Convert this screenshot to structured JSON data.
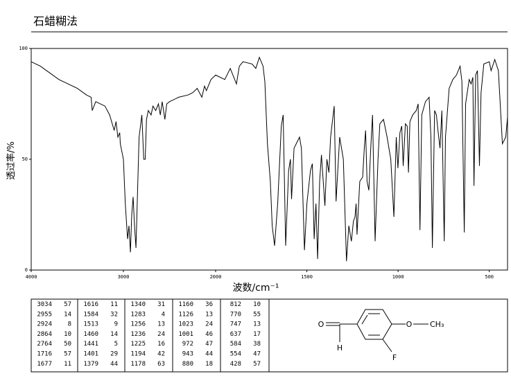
{
  "title": "石蜡糊法",
  "chart_data": {
    "type": "line",
    "xlabel": "波数/cm⁻¹",
    "ylabel": "透过率/%",
    "color": "#000000",
    "xlim": [
      4000,
      400
    ],
    "xbreak": 2000,
    "xticks": [
      4000,
      3000,
      2000,
      1500,
      1000,
      500
    ],
    "ylim": [
      0,
      100
    ],
    "yticks": [
      0,
      50,
      100
    ],
    "x": [
      4000,
      3900,
      3800,
      3700,
      3600,
      3500,
      3400,
      3350,
      3338,
      3300,
      3200,
      3150,
      3100,
      3080,
      3060,
      3040,
      3034,
      3000,
      2980,
      2955,
      2940,
      2924,
      2910,
      2895,
      2880,
      2864,
      2850,
      2830,
      2800,
      2780,
      2764,
      2750,
      2730,
      2700,
      2680,
      2650,
      2620,
      2600,
      2580,
      2550,
      2530,
      2500,
      2400,
      2300,
      2250,
      2200,
      2150,
      2120,
      2100,
      2050,
      2000,
      1950,
      1920,
      1886,
      1870,
      1850,
      1800,
      1780,
      1760,
      1740,
      1730,
      1716,
      1700,
      1690,
      1677,
      1660,
      1640,
      1630,
      1616,
      1600,
      1590,
      1584,
      1570,
      1540,
      1530,
      1513,
      1500,
      1480,
      1470,
      1460,
      1450,
      1441,
      1430,
      1420,
      1410,
      1401,
      1390,
      1379,
      1370,
      1350,
      1340,
      1320,
      1300,
      1283,
      1270,
      1256,
      1245,
      1236,
      1230,
      1225,
      1210,
      1194,
      1185,
      1178,
      1170,
      1160,
      1150,
      1140,
      1126,
      1110,
      1100,
      1080,
      1060,
      1040,
      1023,
      1010,
      1001,
      990,
      980,
      972,
      960,
      950,
      943,
      935,
      920,
      900,
      890,
      880,
      870,
      850,
      830,
      820,
      812,
      800,
      790,
      780,
      770,
      760,
      747,
      740,
      720,
      700,
      680,
      660,
      650,
      637,
      630,
      610,
      600,
      590,
      584,
      575,
      565,
      554,
      545,
      530,
      500,
      490,
      470,
      450,
      428,
      410,
      400
    ],
    "values": [
      94,
      92,
      89,
      86,
      84,
      82,
      79,
      78,
      72,
      76,
      74,
      70,
      63,
      67,
      60,
      62,
      57,
      50,
      30,
      14,
      20,
      8,
      25,
      33,
      20,
      10,
      30,
      60,
      70,
      50,
      50,
      68,
      72,
      70,
      74,
      72,
      75,
      70,
      76,
      68,
      75,
      76,
      78,
      79,
      80,
      82,
      78,
      83,
      81,
      86,
      88,
      86,
      91,
      84,
      92,
      94,
      93,
      91,
      96,
      92,
      85,
      57,
      40,
      20,
      11,
      30,
      65,
      70,
      11,
      45,
      50,
      32,
      55,
      60,
      55,
      9,
      30,
      45,
      48,
      14,
      30,
      5,
      40,
      52,
      40,
      29,
      50,
      44,
      60,
      74,
      31,
      60,
      50,
      4,
      20,
      13,
      22,
      24,
      30,
      16,
      40,
      42,
      55,
      63,
      40,
      36,
      55,
      70,
      13,
      50,
      66,
      68,
      60,
      50,
      24,
      60,
      46,
      62,
      65,
      47,
      66,
      65,
      44,
      67,
      70,
      72,
      75,
      18,
      70,
      76,
      78,
      60,
      10,
      72,
      70,
      62,
      55,
      72,
      13,
      60,
      82,
      86,
      88,
      92,
      85,
      17,
      75,
      86,
      84,
      87,
      38,
      88,
      90,
      47,
      80,
      93,
      94,
      90,
      95,
      90,
      57,
      60,
      69
    ]
  },
  "peak_table": [
    [
      [
        3034,
        57
      ],
      [
        2955,
        14
      ],
      [
        2924,
        8
      ],
      [
        2864,
        10
      ],
      [
        2764,
        50
      ],
      [
        1716,
        57
      ],
      [
        1677,
        11
      ]
    ],
    [
      [
        1616,
        11
      ],
      [
        1584,
        32
      ],
      [
        1513,
        9
      ],
      [
        1460,
        14
      ],
      [
        1441,
        5
      ],
      [
        1401,
        29
      ],
      [
        1379,
        44
      ]
    ],
    [
      [
        1340,
        31
      ],
      [
        1283,
        4
      ],
      [
        1256,
        13
      ],
      [
        1236,
        24
      ],
      [
        1225,
        16
      ],
      [
        1194,
        42
      ],
      [
        1178,
        63
      ]
    ],
    [
      [
        1160,
        36
      ],
      [
        1126,
        13
      ],
      [
        1023,
        24
      ],
      [
        1001,
        46
      ],
      [
        972,
        47
      ],
      [
        943,
        44
      ],
      [
        880,
        18
      ]
    ],
    [
      [
        812,
        10
      ],
      [
        770,
        55
      ],
      [
        747,
        13
      ],
      [
        637,
        17
      ],
      [
        584,
        38
      ],
      [
        554,
        47
      ],
      [
        428,
        57
      ]
    ]
  ],
  "structure": {
    "labels": [
      "O",
      "H",
      "O",
      "CH₃",
      "F"
    ]
  }
}
